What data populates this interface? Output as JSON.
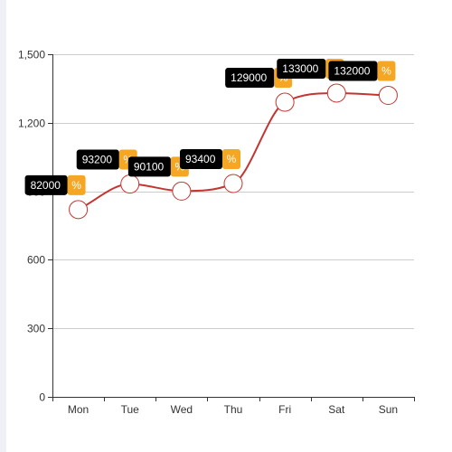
{
  "chart_data": {
    "type": "line",
    "smooth": true,
    "categories": [
      "Mon",
      "Tue",
      "Wed",
      "Thu",
      "Fri",
      "Sat",
      "Sun"
    ],
    "series": [
      {
        "values": [
          82000,
          93200,
          90100,
          93400,
          129000,
          133000,
          132000
        ],
        "plotted": [
          820,
          932,
          901,
          934,
          1290,
          1330,
          1320
        ],
        "label_suffix": "%"
      }
    ],
    "y_ticks": [
      "0",
      "300",
      "600",
      "900",
      "1,200",
      "1,500"
    ],
    "ylim": [
      0,
      1500
    ],
    "grid": true,
    "colors": {
      "line": "#c23531",
      "marker_fill": "#ffffff",
      "marker_stroke": "#c23531",
      "label_bg": "#000000",
      "label_suffix_bg": "#f5a623",
      "label_text": "#ffffff",
      "grid": "#cccccc",
      "axis": "#333333"
    }
  }
}
